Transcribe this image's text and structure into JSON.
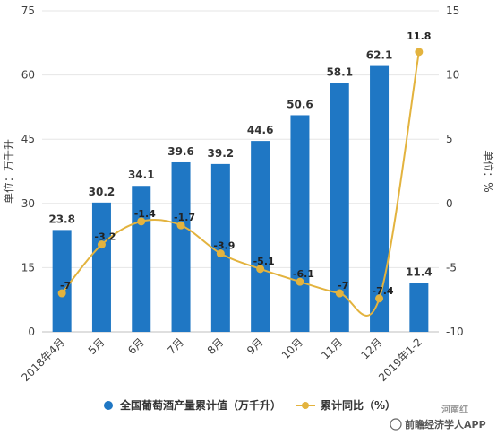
{
  "chart_data": {
    "type": "bar+line",
    "categories": [
      "2018年4月",
      "5月",
      "6月",
      "7月",
      "8月",
      "9月",
      "10月",
      "11月",
      "12月",
      "2019年1-2"
    ],
    "series": [
      {
        "name": "全国葡萄酒产量累计值（万千升）",
        "type": "bar",
        "axis": "left",
        "values": [
          23.8,
          30.2,
          34.1,
          39.6,
          39.2,
          44.6,
          50.6,
          58.1,
          62.1,
          11.4
        ],
        "labels": [
          "23.8",
          "30.2",
          "34.1",
          "39.6",
          "39.2",
          "44.6",
          "50.6",
          "58.1",
          "62.1",
          "11.4"
        ],
        "color": "#1f77c4"
      },
      {
        "name": "累计同比（%）",
        "type": "line",
        "axis": "right",
        "values": [
          -7,
          -3.2,
          -1.4,
          -1.7,
          -3.9,
          -5.1,
          -6.1,
          -7,
          -7.4,
          11.8
        ],
        "labels": [
          "-7",
          "-3.2",
          "-1.4",
          "-1.7",
          "-3.9",
          "-5.1",
          "-6.1",
          "-7",
          "-7.4",
          "11.8"
        ],
        "color": "#e3b33e"
      }
    ],
    "ylabel_left": "单位：万千升",
    "ylabel_right": "单位：%",
    "ylim_left": [
      0,
      75
    ],
    "ylim_right": [
      -10,
      15
    ],
    "yticks_left": [
      "0",
      "15",
      "30",
      "45",
      "60",
      "75"
    ],
    "yticks_right": [
      "-10",
      "-5",
      "0",
      "5",
      "10",
      "15"
    ],
    "grid": true,
    "legend_position": "bottom"
  },
  "watermark": {
    "text": "前瞻经济学人APP",
    "sub": "河南红"
  }
}
